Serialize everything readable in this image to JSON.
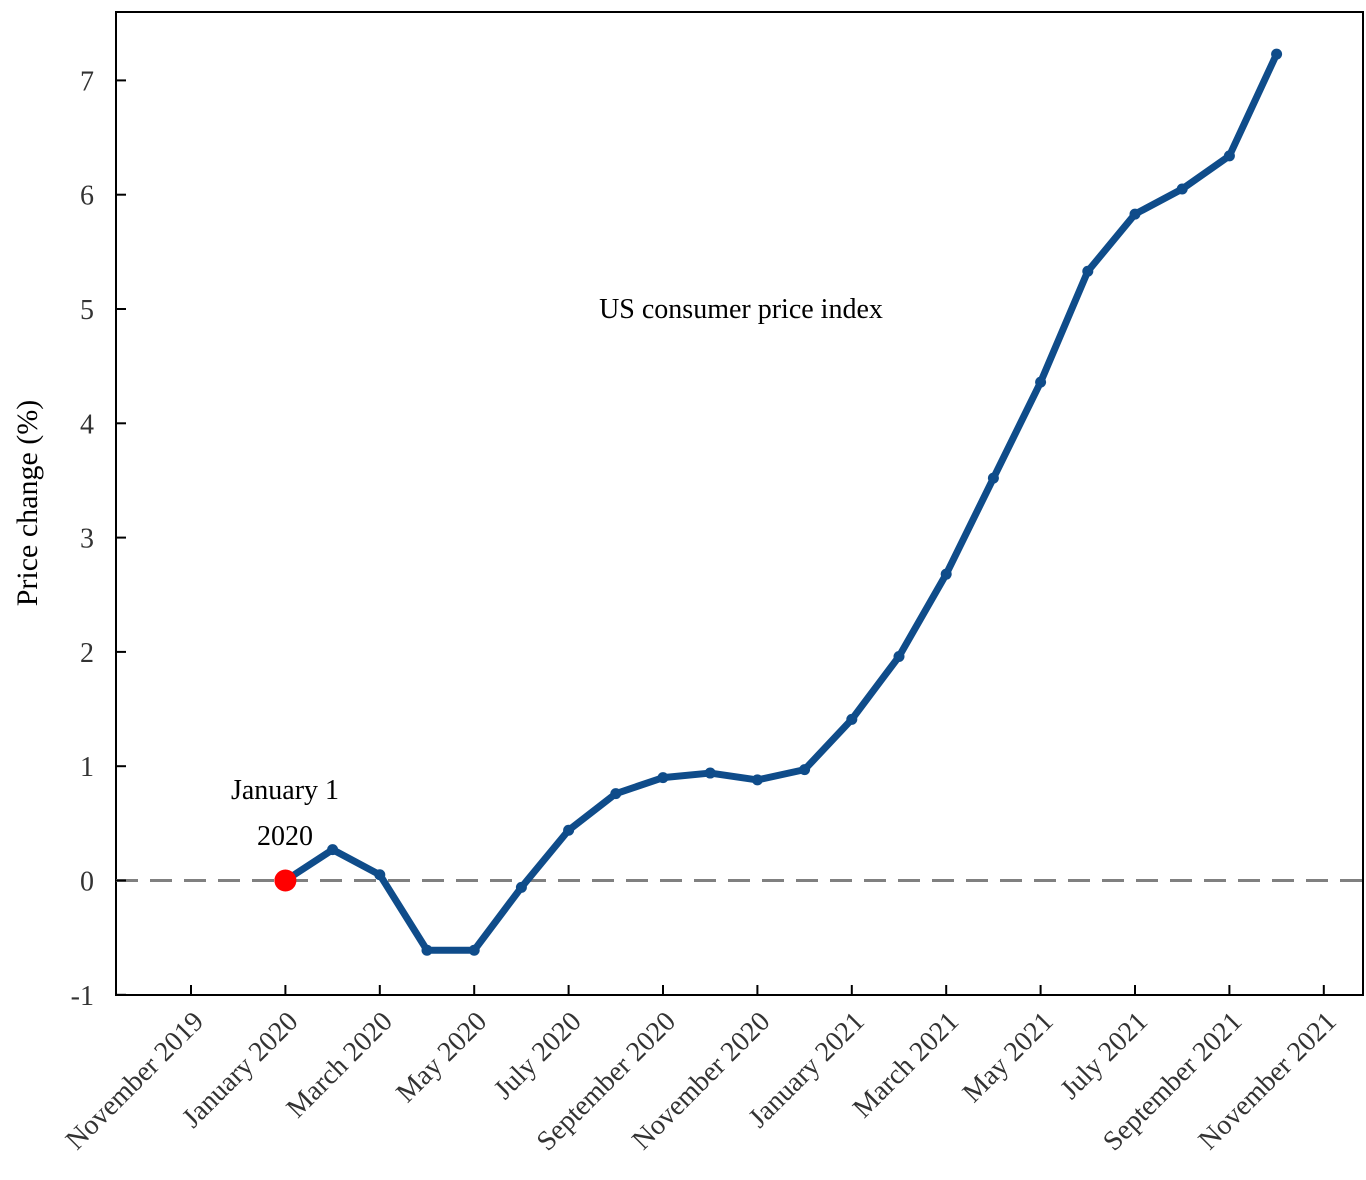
{
  "chart_data": {
    "type": "line",
    "title": "US consumer price index",
    "xlabel": "",
    "ylabel": "Price change (%)",
    "ylim": [
      -1,
      7.6
    ],
    "yticks": [
      -1,
      0,
      1,
      2,
      3,
      4,
      5,
      6,
      7
    ],
    "xticks": [
      "November 2019",
      "January 2020",
      "March 2020",
      "May 2020",
      "July 2020",
      "September 2020",
      "November 2020",
      "January 2021",
      "March 2021",
      "May 2021",
      "July 2021",
      "September 2021",
      "November 2021"
    ],
    "grid": false,
    "series": [
      {
        "color": "#0f4c8a",
        "x": [
          "2020-01",
          "2020-02",
          "2020-03",
          "2020-04",
          "2020-05",
          "2020-06",
          "2020-07",
          "2020-08",
          "2020-09",
          "2020-10",
          "2020-11",
          "2020-12",
          "2021-01",
          "2021-02",
          "2021-03",
          "2021-04",
          "2021-05",
          "2021-06",
          "2021-07",
          "2021-08",
          "2021-09",
          "2021-10"
        ],
        "values": [
          0.0,
          0.27,
          0.05,
          -0.61,
          -0.61,
          -0.06,
          0.44,
          0.76,
          0.9,
          0.94,
          0.88,
          0.97,
          1.41,
          1.96,
          2.68,
          3.52,
          4.36,
          5.33,
          5.83,
          6.05,
          6.34,
          7.23
        ]
      }
    ],
    "reference_line": {
      "y": 0,
      "style": "dashed",
      "color": "#808080"
    },
    "highlight": {
      "x": "2020-01",
      "y": 0,
      "color": "#ff0000"
    },
    "annotations": [
      {
        "lines": [
          "January 1",
          "2020"
        ]
      }
    ]
  }
}
